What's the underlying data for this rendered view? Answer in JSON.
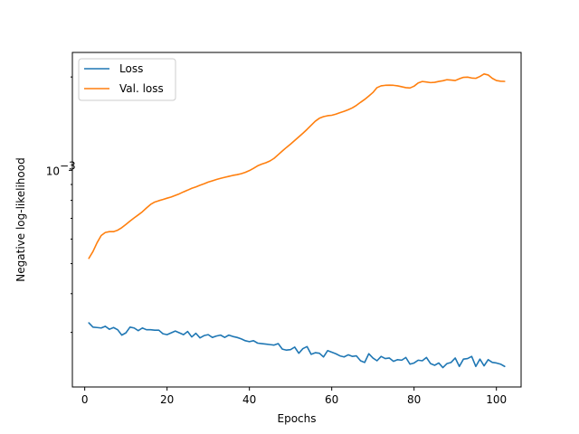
{
  "chart_data": {
    "type": "line",
    "title": "",
    "xlabel": "Epochs",
    "ylabel": "Negative log-likelihood",
    "yscale": "log",
    "xlim": [
      -3,
      106
    ],
    "ylim": [
      0.0002,
      0.0024
    ],
    "x_ticks": [
      0,
      20,
      40,
      60,
      80,
      100
    ],
    "x_tick_labels": [
      "0",
      "20",
      "40",
      "60",
      "80",
      "100"
    ],
    "y_ticks": [
      0.001
    ],
    "y_tick_labels": [
      "10",
      "−3"
    ],
    "grid": false,
    "legend": {
      "placement": "top-left",
      "entries": [
        "Loss",
        "Val. loss"
      ]
    },
    "series": [
      {
        "name": "Loss",
        "color": "#1f77b4",
        "x": [
          1,
          2,
          3,
          4,
          5,
          6,
          7,
          8,
          9,
          10,
          11,
          12,
          13,
          14,
          15,
          16,
          17,
          18,
          19,
          20,
          21,
          22,
          23,
          24,
          25,
          26,
          27,
          28,
          29,
          30,
          31,
          32,
          33,
          34,
          35,
          36,
          37,
          38,
          39,
          40,
          41,
          42,
          43,
          44,
          45,
          46,
          47,
          48,
          49,
          50,
          51,
          52,
          53,
          54,
          55,
          56,
          57,
          58,
          59,
          60,
          61,
          62,
          63,
          64,
          65,
          66,
          67,
          68,
          69,
          70,
          71,
          72,
          73,
          74,
          75,
          76,
          77,
          78,
          79,
          80,
          81,
          82,
          83,
          84,
          85,
          86,
          87,
          88,
          89,
          90,
          91,
          92,
          93,
          94,
          95,
          96,
          97,
          98,
          99,
          100,
          101,
          102
        ],
        "y": [
          0.000322,
          0.000312,
          0.000311,
          0.00031,
          0.000314,
          0.000307,
          0.000311,
          0.000306,
          0.000294,
          0.000299,
          0.000312,
          0.00031,
          0.000304,
          0.00031,
          0.000306,
          0.000306,
          0.000305,
          0.000305,
          0.000297,
          0.000295,
          0.000299,
          0.000303,
          0.000299,
          0.000295,
          0.000302,
          0.00029,
          0.000298,
          0.000288,
          0.000293,
          0.000295,
          0.000289,
          0.000292,
          0.000294,
          0.000289,
          0.000294,
          0.000291,
          0.000289,
          0.000286,
          0.000282,
          0.00028,
          0.000282,
          0.000277,
          0.000276,
          0.000275,
          0.000274,
          0.000273,
          0.000276,
          0.000265,
          0.000263,
          0.000264,
          0.000269,
          0.000257,
          0.000266,
          0.00027,
          0.000255,
          0.000258,
          0.000257,
          0.00025,
          0.000262,
          0.000259,
          0.000256,
          0.000252,
          0.00025,
          0.000254,
          0.000251,
          0.000252,
          0.000243,
          0.00024,
          0.000256,
          0.000248,
          0.000243,
          0.000251,
          0.000247,
          0.000248,
          0.000242,
          0.000245,
          0.000244,
          0.000249,
          0.000237,
          0.000239,
          0.000244,
          0.000243,
          0.000249,
          0.000238,
          0.000235,
          0.000239,
          0.000231,
          0.000238,
          0.00024,
          0.000248,
          0.000233,
          0.000246,
          0.000247,
          0.000251,
          0.000233,
          0.000246,
          0.000234,
          0.000245,
          0.00024,
          0.000239,
          0.000237,
          0.000233
        ]
      },
      {
        "name": "Val. loss",
        "color": "#ff7f0e",
        "x": [
          1,
          2,
          3,
          4,
          5,
          6,
          7,
          8,
          9,
          10,
          11,
          12,
          13,
          14,
          15,
          16,
          17,
          18,
          19,
          20,
          21,
          22,
          23,
          24,
          25,
          26,
          27,
          28,
          29,
          30,
          31,
          32,
          33,
          34,
          35,
          36,
          37,
          38,
          39,
          40,
          41,
          42,
          43,
          44,
          45,
          46,
          47,
          48,
          49,
          50,
          51,
          52,
          53,
          54,
          55,
          56,
          57,
          58,
          59,
          60,
          61,
          62,
          63,
          64,
          65,
          66,
          67,
          68,
          69,
          70,
          71,
          72,
          73,
          74,
          75,
          76,
          77,
          78,
          79,
          80,
          81,
          82,
          83,
          84,
          85,
          86,
          87,
          88,
          89,
          90,
          91,
          92,
          93,
          94,
          95,
          96,
          97,
          98,
          99,
          100,
          101,
          102
        ],
        "y": [
          0.00052,
          0.000547,
          0.000584,
          0.000616,
          0.00063,
          0.000634,
          0.000634,
          0.000641,
          0.000653,
          0.000669,
          0.000686,
          0.000702,
          0.000718,
          0.000735,
          0.000756,
          0.000776,
          0.00079,
          0.000798,
          0.000805,
          0.000813,
          0.00082,
          0.00083,
          0.00084,
          0.000852,
          0.000863,
          0.000875,
          0.000884,
          0.000895,
          0.000905,
          0.000916,
          0.000925,
          0.000934,
          0.000942,
          0.000949,
          0.000956,
          0.000963,
          0.000968,
          0.000975,
          0.000985,
          0.000998,
          0.001015,
          0.001034,
          0.001047,
          0.001058,
          0.001072,
          0.001093,
          0.001123,
          0.001154,
          0.001185,
          0.001215,
          0.001248,
          0.001282,
          0.001317,
          0.001355,
          0.001397,
          0.00144,
          0.001472,
          0.00149,
          0.0015,
          0.001505,
          0.001518,
          0.001534,
          0.00155,
          0.001568,
          0.00159,
          0.00162,
          0.001657,
          0.001693,
          0.001736,
          0.001782,
          0.001848,
          0.001873,
          0.00188,
          0.001882,
          0.00188,
          0.001873,
          0.00186,
          0.001848,
          0.001843,
          0.001868,
          0.001913,
          0.001934,
          0.001927,
          0.001918,
          0.001922,
          0.001935,
          0.001945,
          0.00196,
          0.001955,
          0.001948,
          0.001974,
          0.001995,
          0.001998,
          0.001985,
          0.00198,
          0.002008,
          0.002045,
          0.00203,
          0.00198,
          0.001948,
          0.001938,
          0.001936
        ]
      }
    ]
  }
}
